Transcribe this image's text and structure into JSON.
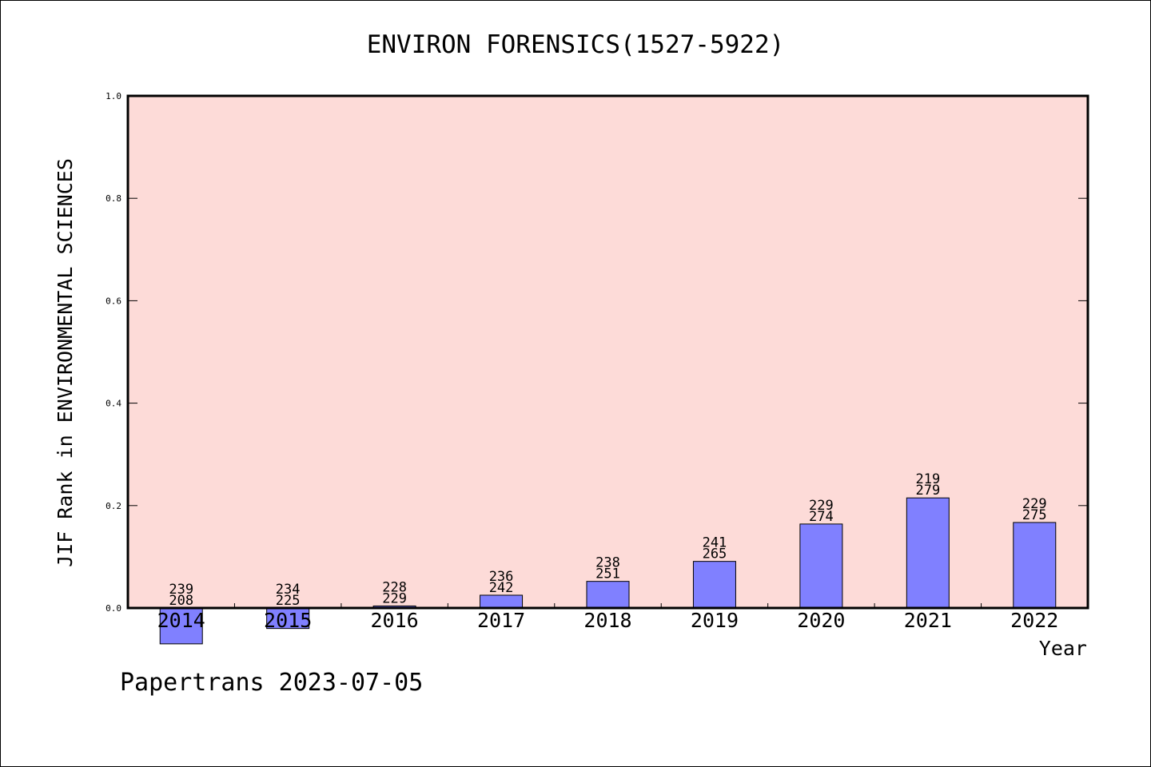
{
  "chart_data": {
    "type": "bar",
    "title": "ENVIRON FORENSICS(1527-5922)",
    "xlabel": "Year",
    "ylabel": "JIF Rank in ENVIRONMENTAL SCIENCES",
    "ylim": [
      0,
      1.0
    ],
    "yticks": [
      "0.0",
      "0.2",
      "0.4",
      "0.6",
      "0.8",
      "1.0"
    ],
    "grid": false,
    "categories": [
      "2014",
      "2015",
      "2016",
      "2017",
      "2018",
      "2019",
      "2020",
      "2021",
      "2022"
    ],
    "values": [
      -0.07,
      -0.04,
      0.004,
      0.025,
      0.052,
      0.091,
      0.164,
      0.215,
      0.167
    ],
    "rank_labels": [
      "239",
      "234",
      "228",
      "236",
      "238",
      "241",
      "229",
      "219",
      "229"
    ],
    "total_labels": [
      "208",
      "225",
      "229",
      "242",
      "251",
      "265",
      "274",
      "279",
      "275"
    ]
  },
  "footer": "Papertrans 2023-07-05",
  "colors": {
    "plot_background": "#fddbd8",
    "bar_fill": "#8080ff",
    "bar_stroke": "#000000",
    "axis": "#000000"
  }
}
